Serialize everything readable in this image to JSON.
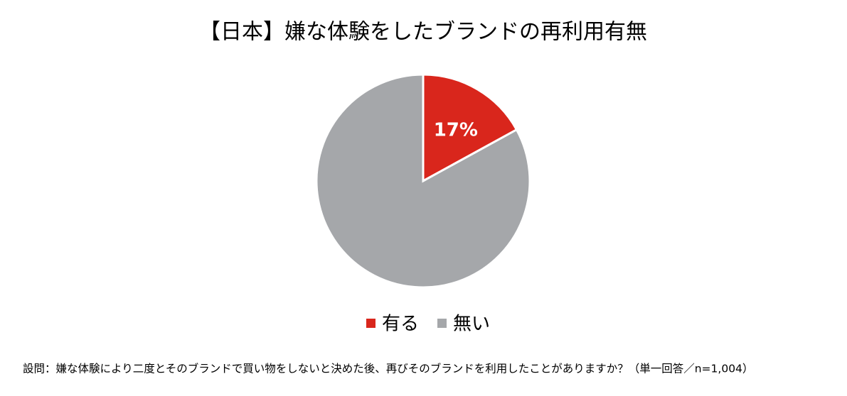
{
  "chart_data": {
    "type": "pie",
    "title": "【日本】嫌な体験をしたブランドの再利用有無",
    "categories": [
      "有る",
      "無い"
    ],
    "values": [
      17,
      83
    ],
    "value_labels": [
      "17%",
      null
    ],
    "colors": [
      "#d9261c",
      "#a5a7aa"
    ],
    "legend": "bottom",
    "note": "設問：嫌な体験により二度とそのブランドで買い物をしないと決めた後、再びそのブランドを利用したことがありますか？（単一回答／n=1,004）"
  }
}
